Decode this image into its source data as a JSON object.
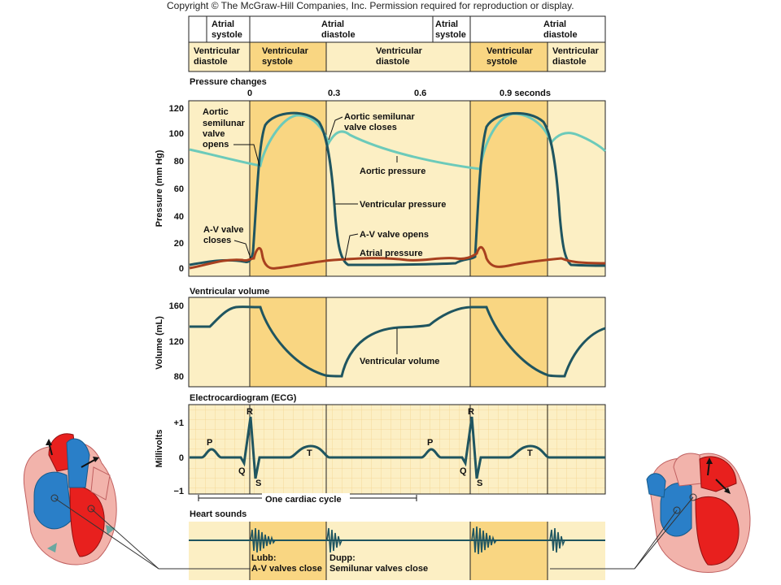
{
  "copyright": "Copyright © The McGraw-Hill Companies, Inc. Permission required for reproduction or display.",
  "phases_atrial": [
    "Atrial systole",
    "Atrial diastole",
    "Atrial systole",
    "Atrial diastole"
  ],
  "phases_ventricular": [
    "Ventricular diastole",
    "Ventricular systole",
    "Ventricular diastole",
    "Ventricular systole",
    "Ventricular diastole"
  ],
  "pressure": {
    "section_title": "Pressure changes",
    "time_ticks": [
      "0",
      "0.3",
      "0.6",
      "0.9 seconds"
    ],
    "ylabel": "Pressure (mm Hg)",
    "yticks": [
      "120",
      "100",
      "80",
      "60",
      "40",
      "20",
      "0"
    ],
    "annotations": {
      "aortic_opens": [
        "Aortic",
        "semilunar",
        "valve",
        "opens"
      ],
      "aortic_closes": [
        "Aortic semilunar",
        "valve closes"
      ],
      "aortic_pressure": "Aortic pressure",
      "ventricular_pressure": "Ventricular pressure",
      "av_closes": [
        "A-V valve",
        "closes"
      ],
      "av_opens": "A-V valve opens",
      "atrial_pressure": "Atrial pressure"
    }
  },
  "volume": {
    "section_title": "Ventricular volume",
    "ylabel": "Volume (mL)",
    "yticks": [
      "160",
      "120",
      "80"
    ],
    "curve_label": "Ventricular volume"
  },
  "ecg": {
    "section_title": "Electrocardiogram (ECG)",
    "ylabel": "Millivolts",
    "yticks": [
      "+1",
      "0",
      "−1"
    ],
    "waves": [
      "P",
      "R",
      "Q",
      "S",
      "T",
      "P",
      "R",
      "Q",
      "S",
      "T"
    ],
    "cycle_label": "One cardiac cycle"
  },
  "sounds": {
    "section_title": "Heart sounds",
    "lubb": [
      "Lubb:",
      "A-V valves close"
    ],
    "dupp": [
      "Dupp:",
      "Semilunar valves close"
    ]
  },
  "colors": {
    "plot_bg": "#fcefc4",
    "band_shade": "#f9d682",
    "aortic": "#6ccaba",
    "ventricular": "#1f5560",
    "atrial": "#a8401f",
    "heart_red": "#e8201e",
    "heart_blue": "#2a7fc8",
    "heart_pink": "#f2b3ab"
  }
}
